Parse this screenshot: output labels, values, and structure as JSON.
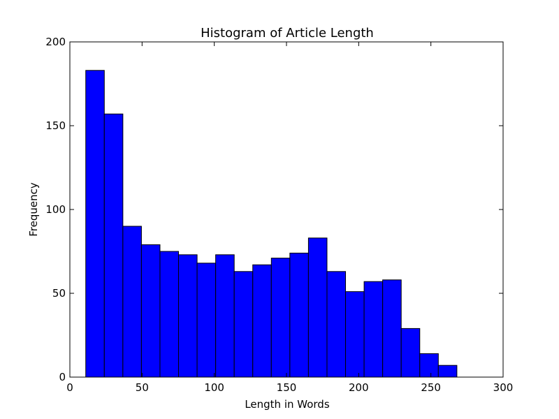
{
  "chart_data": {
    "type": "bar",
    "title": "Histogram of Article Length",
    "xlabel": "Length in Words",
    "ylabel": "Frequency",
    "xlim": [
      0,
      300
    ],
    "ylim": [
      0,
      200
    ],
    "xticks": [
      0,
      50,
      100,
      150,
      200,
      250,
      300
    ],
    "yticks": [
      0,
      50,
      100,
      150,
      200
    ],
    "bin_edges": [
      11,
      23.85,
      36.7,
      49.55,
      62.4,
      75.25,
      88.1,
      100.95,
      113.8,
      126.65,
      139.5,
      152.35,
      165.2,
      178.05,
      190.9,
      203.75,
      216.6,
      229.45,
      242.3,
      255.15,
      268
    ],
    "values": [
      183,
      157,
      90,
      79,
      75,
      73,
      68,
      73,
      63,
      67,
      71,
      74,
      83,
      63,
      51,
      57,
      58,
      29,
      14,
      7
    ],
    "bar_color": "#0000ff",
    "edge_color": "#000000",
    "grid": false
  }
}
